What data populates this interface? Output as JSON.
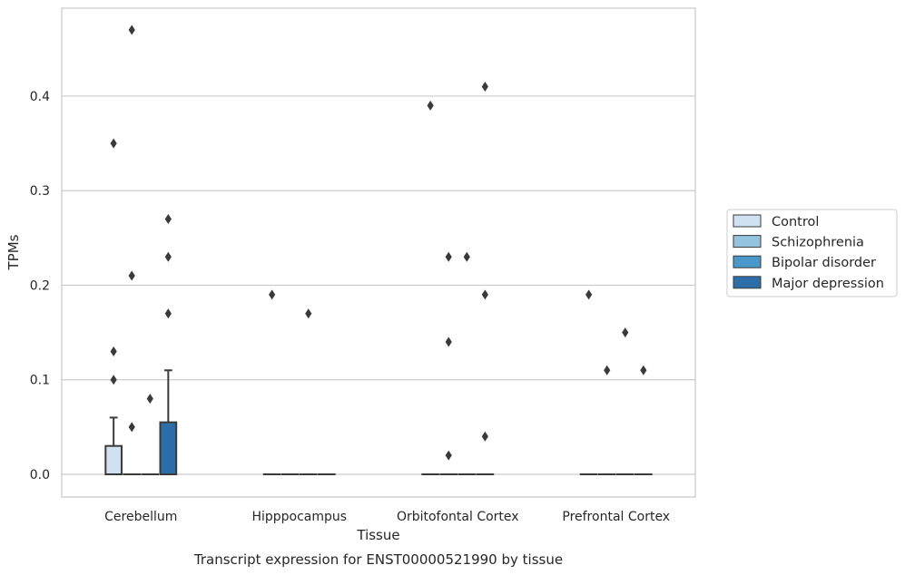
{
  "chart_data": {
    "type": "box",
    "title": "",
    "caption": "Transcript expression for ENST00000521990 by tissue",
    "xlabel": "Tissue",
    "ylabel": "TPMs",
    "ylim": [
      -0.024,
      0.493
    ],
    "yticks": [
      0.0,
      0.1,
      0.2,
      0.3,
      0.4
    ],
    "ytick_labels": [
      "0.0",
      "0.1",
      "0.2",
      "0.3",
      "0.4"
    ],
    "grid": "horizontal",
    "legend_position": "right",
    "categories": [
      "Cerebellum",
      "Hipppocampus",
      "Orbitofontal Cortex",
      "Prefrontal Cortex"
    ],
    "colors": {
      "Control": "#d0e1f2",
      "Schizophrenia": "#94c4df",
      "Bipolar disorder": "#4a98c9",
      "Major depression": "#2e6ea8",
      "outline": "#3a3a3a",
      "grid": "#cccccc"
    },
    "series": [
      {
        "name": "Control",
        "boxes": [
          {
            "q1": 0.0,
            "median": 0.0,
            "q3": 0.03,
            "whislo": 0.0,
            "whishi": 0.06,
            "fliers": [
              0.35,
              0.13,
              0.1
            ]
          },
          {
            "q1": 0.0,
            "median": 0.0,
            "q3": 0.0,
            "whislo": 0.0,
            "whishi": 0.0,
            "fliers": [
              0.19
            ]
          },
          {
            "q1": 0.0,
            "median": 0.0,
            "q3": 0.0,
            "whislo": 0.0,
            "whishi": 0.0,
            "fliers": [
              0.39
            ]
          },
          {
            "q1": 0.0,
            "median": 0.0,
            "q3": 0.0,
            "whislo": 0.0,
            "whishi": 0.0,
            "fliers": [
              0.19
            ]
          }
        ]
      },
      {
        "name": "Schizophrenia",
        "boxes": [
          {
            "q1": 0.0,
            "median": 0.0,
            "q3": 0.0,
            "whislo": 0.0,
            "whishi": 0.0,
            "fliers": [
              0.47,
              0.21,
              0.05
            ]
          },
          {
            "q1": 0.0,
            "median": 0.0,
            "q3": 0.0,
            "whislo": 0.0,
            "whishi": 0.0,
            "fliers": []
          },
          {
            "q1": 0.0,
            "median": 0.0,
            "q3": 0.0,
            "whislo": 0.0,
            "whishi": 0.0,
            "fliers": [
              0.23,
              0.14,
              0.02
            ]
          },
          {
            "q1": 0.0,
            "median": 0.0,
            "q3": 0.0,
            "whislo": 0.0,
            "whishi": 0.0,
            "fliers": [
              0.11
            ]
          }
        ]
      },
      {
        "name": "Bipolar disorder",
        "boxes": [
          {
            "q1": 0.0,
            "median": 0.0,
            "q3": 0.0,
            "whislo": 0.0,
            "whishi": 0.0,
            "fliers": [
              0.08
            ]
          },
          {
            "q1": 0.0,
            "median": 0.0,
            "q3": 0.0,
            "whislo": 0.0,
            "whishi": 0.0,
            "fliers": [
              0.17
            ]
          },
          {
            "q1": 0.0,
            "median": 0.0,
            "q3": 0.0,
            "whislo": 0.0,
            "whishi": 0.0,
            "fliers": [
              0.23
            ]
          },
          {
            "q1": 0.0,
            "median": 0.0,
            "q3": 0.0,
            "whislo": 0.0,
            "whishi": 0.0,
            "fliers": [
              0.15
            ]
          }
        ]
      },
      {
        "name": "Major depression",
        "boxes": [
          {
            "q1": 0.0,
            "median": 0.0,
            "q3": 0.055,
            "whislo": 0.0,
            "whishi": 0.11,
            "fliers": [
              0.27,
              0.23,
              0.17
            ]
          },
          {
            "q1": 0.0,
            "median": 0.0,
            "q3": 0.0,
            "whislo": 0.0,
            "whishi": 0.0,
            "fliers": []
          },
          {
            "q1": 0.0,
            "median": 0.0,
            "q3": 0.0,
            "whislo": 0.0,
            "whishi": 0.0,
            "fliers": [
              0.41,
              0.19,
              0.04
            ]
          },
          {
            "q1": 0.0,
            "median": 0.0,
            "q3": 0.0,
            "whislo": 0.0,
            "whishi": 0.0,
            "fliers": [
              0.11
            ]
          }
        ]
      }
    ]
  }
}
